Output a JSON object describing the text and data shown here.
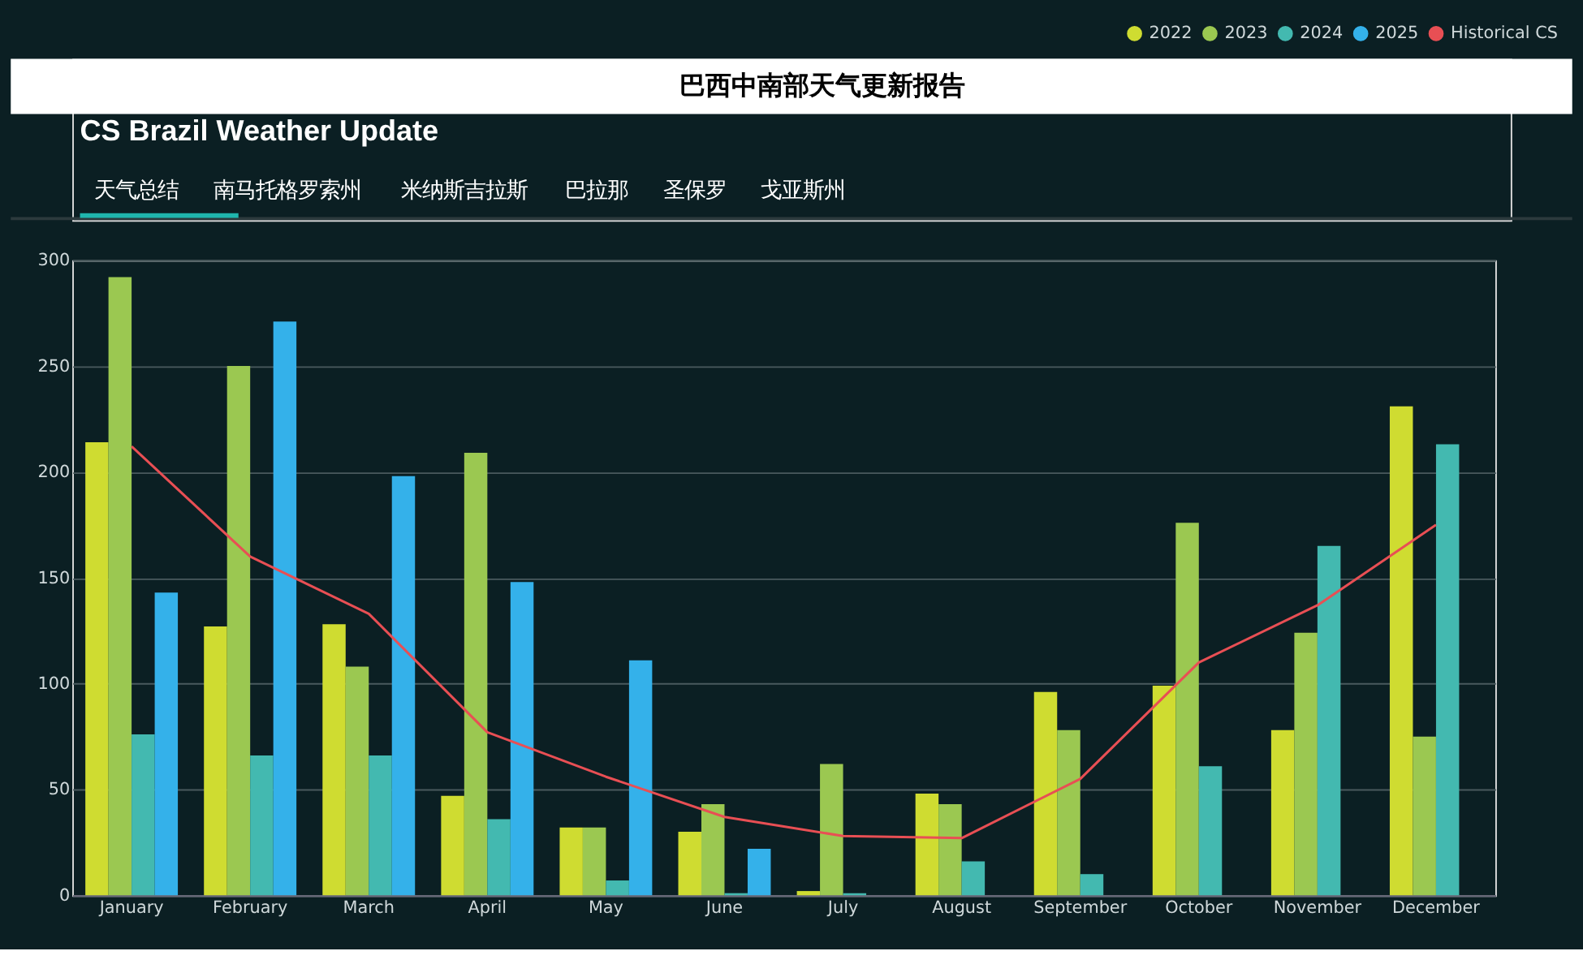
{
  "chart_data": {
    "type": "bar",
    "title": "巴西中南部天气更新报告",
    "subtitle": "CS Brazil Weather Update",
    "annotations": [
      "天气总结",
      "南马托格罗索州",
      "米纳斯吉拉斯",
      "巴拉那",
      "圣保罗",
      "戈亚斯州"
    ],
    "categories": [
      "January",
      "February",
      "March",
      "April",
      "May",
      "June",
      "July",
      "August",
      "September",
      "October",
      "November",
      "December"
    ],
    "series": [
      {
        "name": "2022",
        "color": "#cfdc31",
        "values": [
          214,
          127,
          128,
          47,
          32,
          30,
          2,
          48,
          96,
          99,
          78,
          231
        ]
      },
      {
        "name": "2023",
        "color": "#9bc851",
        "values": [
          292,
          250,
          108,
          209,
          32,
          43,
          62,
          43,
          78,
          176,
          124,
          75
        ]
      },
      {
        "name": "2024",
        "color": "#43b9b0",
        "values": [
          76,
          66,
          66,
          36,
          7,
          1,
          1,
          16,
          10,
          61,
          165,
          213
        ]
      },
      {
        "name": "2025",
        "color": "#34b1ea",
        "values": [
          143,
          271,
          198,
          148,
          111,
          22,
          null,
          null,
          null,
          null,
          null,
          null
        ]
      },
      {
        "name": "Historical CS",
        "type": "line",
        "color": "#e84f54",
        "values": [
          212,
          160,
          133,
          77,
          56,
          37,
          28,
          27,
          55,
          110,
          137,
          175
        ]
      }
    ],
    "ylim": [
      0,
      300
    ],
    "yticks": [
      0,
      50,
      100,
      150,
      200,
      250,
      300
    ],
    "grid": "y",
    "legend": "top right"
  }
}
